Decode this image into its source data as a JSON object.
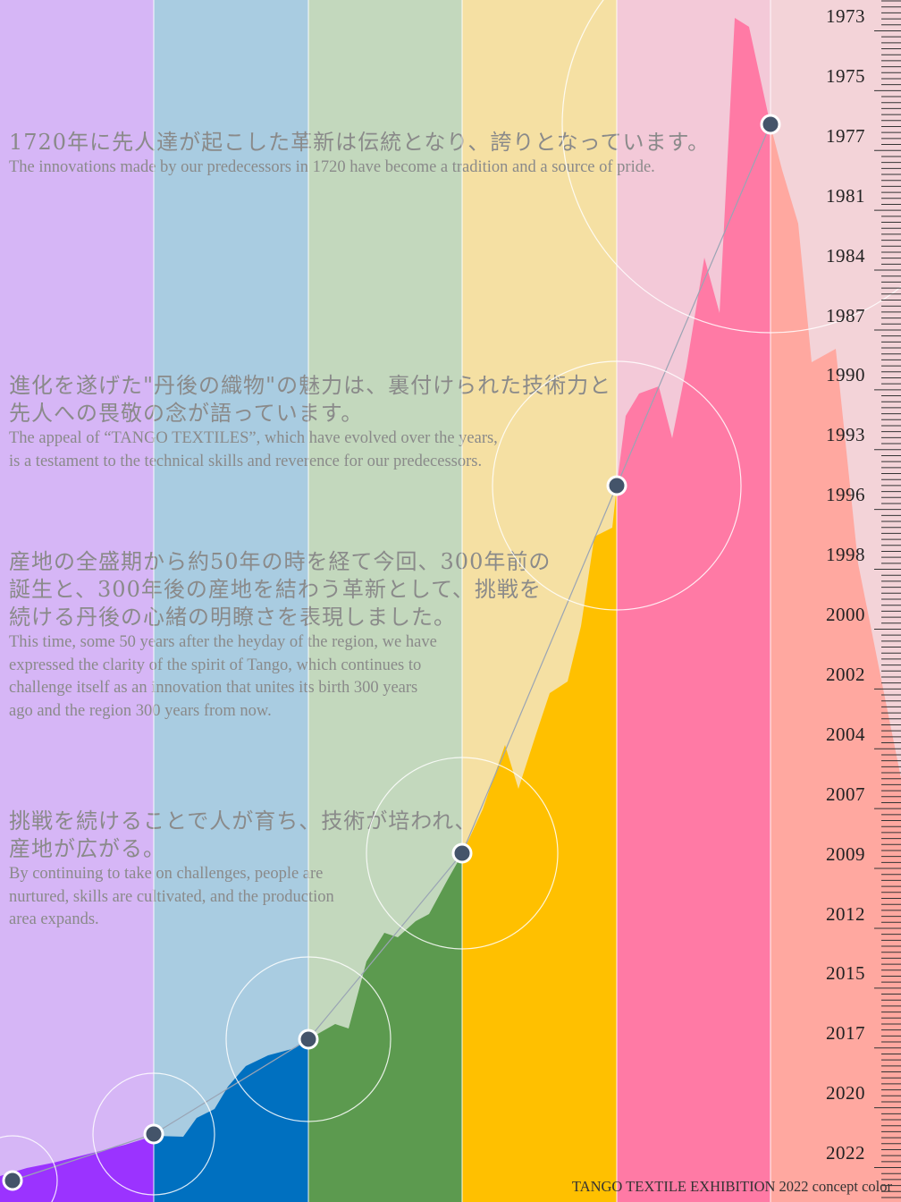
{
  "palette": {
    "stripes_light": [
      "#d6b6f6",
      "#a9cce1",
      "#c3d8bd",
      "#f5e0a3",
      "#f3c9d8",
      "#f3d3d8"
    ],
    "stripes_strong": [
      "#9b33ff",
      "#0070c0",
      "#5c9a4f",
      "#ffc000",
      "#ff7aa5",
      "#ffa8a0"
    ],
    "dot": "#44546a"
  },
  "paragraphs": [
    {
      "jp": [
        "1720年に先人達が起こした革新は伝統となり、誇りとなっています。"
      ],
      "en": [
        "The innovations  made by our predecessors in 1720 have become a tradition  and a source of pride."
      ]
    },
    {
      "jp": [
        "進化を遂げた\"丹後の織物\"の魅力は、裏付けられた技術力と",
        "先人への畏敬の念が語っています。"
      ],
      "en": [
        "The appeal of “TANGO TEXTILES”, which have evolved over the years,",
        "is a testament to the technical skills and reverence for our predecessors."
      ]
    },
    {
      "jp": [
        "産地の全盛期から約50年の時を経て今回、300年前の",
        "誕生と、300年後の産地を結わう革新として、挑戦を",
        "続ける丹後の心緒の明瞭さを表現しました。"
      ],
      "en": [
        "This time, some 50 years after the heyday of the region, we have",
        "expressed the clarity of the spirit of Tango, which continues to",
        "challenge itself as an innovation that unites its birth 300 years",
        "ago and the region 300 years from now."
      ]
    },
    {
      "jp": [
        "挑戦を続けることで人が育ち、技術が培われ、",
        "産地が広がる。"
      ],
      "en": [
        "By continuing to take on challenges, people are",
        "nurtured, skills are cultivated, and the production",
        "area expands."
      ]
    }
  ],
  "years": [
    "1973",
    "1975",
    "1977",
    "1981",
    "1984",
    "1987",
    "1990",
    "1993",
    "1996",
    "1998",
    "2000",
    "2002",
    "2004",
    "2007",
    "2009",
    "2012",
    "2015",
    "2017",
    "2020",
    "2022"
  ],
  "footer": "TANGO TEXTILE EXHIBITION 2022 concept color"
}
